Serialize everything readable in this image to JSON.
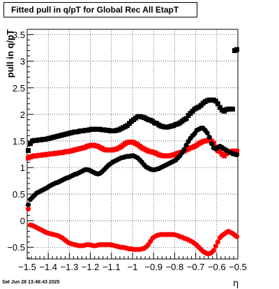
{
  "chart_data": {
    "type": "scatter",
    "title": "Fitted pull in q/pT for Global Rec All EtapT",
    "xlabel": "η",
    "ylabel": "pull in q/pT",
    "xlim": [
      -1.5,
      -0.5
    ],
    "ylim": [
      -0.72,
      3.6
    ],
    "grid": true,
    "x_ticks": [
      "−1.5",
      "−1.4",
      "−1.3",
      "−1.2",
      "−1.1",
      "−1",
      "−0.9",
      "−0.8",
      "−0.7",
      "−0.6",
      "−0.5"
    ],
    "x_tick_values": [
      -1.5,
      -1.4,
      -1.3,
      -1.2,
      -1.1,
      -1.0,
      -0.9,
      -0.8,
      -0.7,
      -0.6,
      -0.5
    ],
    "y_ticks": [
      "−0.5",
      "0",
      "0.5",
      "1",
      "1.5",
      "2",
      "2.5",
      "3",
      "3.5"
    ],
    "y_tick_values": [
      -0.5,
      0,
      0.5,
      1,
      1.5,
      2,
      2.5,
      3,
      3.5
    ],
    "series": [
      {
        "marker": "square",
        "color": "#000000",
        "x": [
          -1.495,
          -1.485,
          -1.475,
          -1.465,
          -1.455,
          -1.445,
          -1.435,
          -1.425,
          -1.415,
          -1.405,
          -1.395,
          -1.385,
          -1.375,
          -1.365,
          -1.355,
          -1.345,
          -1.335,
          -1.325,
          -1.315,
          -1.305,
          -1.295,
          -1.285,
          -1.275,
          -1.265,
          -1.255,
          -1.245,
          -1.235,
          -1.225,
          -1.215,
          -1.205,
          -1.195,
          -1.185,
          -1.175,
          -1.165,
          -1.155,
          -1.145,
          -1.135,
          -1.125,
          -1.115,
          -1.105,
          -1.095,
          -1.085,
          -1.075,
          -1.065,
          -1.055,
          -1.045,
          -1.035,
          -1.025,
          -1.015,
          -1.005,
          -0.995,
          -0.985,
          -0.975,
          -0.965,
          -0.955,
          -0.945,
          -0.935,
          -0.925,
          -0.915,
          -0.905,
          -0.895,
          -0.885,
          -0.875,
          -0.865,
          -0.855,
          -0.845,
          -0.835,
          -0.825,
          -0.815,
          -0.805,
          -0.795,
          -0.785,
          -0.775,
          -0.765,
          -0.755,
          -0.745,
          -0.735,
          -0.725,
          -0.715,
          -0.705,
          -0.695,
          -0.685,
          -0.675,
          -0.665,
          -0.655,
          -0.645,
          -0.635,
          -0.625,
          -0.615,
          -0.605,
          -0.595,
          -0.585,
          -0.575,
          -0.565,
          -0.555,
          -0.545,
          -0.535,
          -0.525,
          -0.515,
          -0.505
        ],
        "y": [
          1.32,
          1.45,
          1.5,
          1.51,
          1.51,
          1.52,
          1.52,
          1.53,
          1.53,
          1.54,
          1.55,
          1.56,
          1.57,
          1.58,
          1.59,
          1.6,
          1.61,
          1.62,
          1.63,
          1.64,
          1.65,
          1.66,
          1.67,
          1.67,
          1.68,
          1.69,
          1.69,
          1.7,
          1.7,
          1.71,
          1.72,
          1.72,
          1.72,
          1.72,
          1.72,
          1.71,
          1.71,
          1.7,
          1.7,
          1.69,
          1.69,
          1.69,
          1.7,
          1.71,
          1.73,
          1.75,
          1.77,
          1.79,
          1.83,
          1.87,
          1.9,
          1.93,
          1.96,
          1.96,
          1.95,
          1.94,
          1.92,
          1.9,
          1.89,
          1.87,
          1.84,
          1.83,
          1.8,
          1.78,
          1.77,
          1.76,
          1.76,
          1.77,
          1.78,
          1.79,
          1.81,
          1.82,
          1.84,
          1.87,
          1.9,
          1.92,
          1.98,
          2.02,
          2.06,
          2.1,
          2.12,
          2.14,
          2.17,
          2.21,
          2.24,
          2.26,
          2.27,
          2.27,
          2.27,
          2.25,
          2.2,
          2.13,
          2.08,
          2.06,
          2.09,
          2.1,
          2.1,
          2.1,
          3.2,
          3.22
        ]
      },
      {
        "marker": "square",
        "color": "#ff0000",
        "x": [
          -1.495,
          -1.485,
          -1.475,
          -1.465,
          -1.455,
          -1.445,
          -1.435,
          -1.425,
          -1.415,
          -1.405,
          -1.395,
          -1.385,
          -1.375,
          -1.365,
          -1.355,
          -1.345,
          -1.335,
          -1.325,
          -1.315,
          -1.305,
          -1.295,
          -1.285,
          -1.275,
          -1.265,
          -1.255,
          -1.245,
          -1.235,
          -1.225,
          -1.215,
          -1.205,
          -1.195,
          -1.185,
          -1.175,
          -1.165,
          -1.155,
          -1.145,
          -1.135,
          -1.125,
          -1.115,
          -1.105,
          -1.095,
          -1.085,
          -1.075,
          -1.065,
          -1.055,
          -1.045,
          -1.035,
          -1.025,
          -1.015,
          -1.005,
          -0.995,
          -0.985,
          -0.975,
          -0.965,
          -0.955,
          -0.945,
          -0.935,
          -0.925,
          -0.915,
          -0.905,
          -0.895,
          -0.885,
          -0.875,
          -0.865,
          -0.855,
          -0.845,
          -0.835,
          -0.825,
          -0.815,
          -0.805,
          -0.795,
          -0.785,
          -0.775,
          -0.765,
          -0.755,
          -0.745,
          -0.735,
          -0.725,
          -0.715,
          -0.705,
          -0.695,
          -0.685,
          -0.675,
          -0.665,
          -0.655,
          -0.645,
          -0.635,
          -0.625,
          -0.615,
          -0.605,
          -0.595,
          -0.585,
          -0.575,
          -0.565,
          -0.555,
          -0.545,
          -0.535,
          -0.525,
          -0.515,
          -0.505
        ],
        "y": [
          1.18,
          1.2,
          1.21,
          1.22,
          1.22,
          1.23,
          1.23,
          1.24,
          1.24,
          1.25,
          1.25,
          1.26,
          1.26,
          1.27,
          1.27,
          1.28,
          1.28,
          1.29,
          1.3,
          1.3,
          1.31,
          1.32,
          1.33,
          1.34,
          1.35,
          1.36,
          1.37,
          1.38,
          1.4,
          1.41,
          1.42,
          1.42,
          1.41,
          1.4,
          1.38,
          1.36,
          1.34,
          1.33,
          1.33,
          1.33,
          1.33,
          1.34,
          1.35,
          1.37,
          1.39,
          1.42,
          1.45,
          1.47,
          1.48,
          1.48,
          1.47,
          1.45,
          1.43,
          1.4,
          1.37,
          1.35,
          1.33,
          1.31,
          1.3,
          1.29,
          1.28,
          1.26,
          1.24,
          1.23,
          1.22,
          1.22,
          1.22,
          1.22,
          1.23,
          1.24,
          1.25,
          1.27,
          1.28,
          1.29,
          1.31,
          1.33,
          1.35,
          1.37,
          1.38,
          1.4,
          1.42,
          1.45,
          1.47,
          1.49,
          1.5,
          1.51,
          1.51,
          1.5,
          1.46,
          1.38,
          1.32,
          1.3,
          1.25,
          1.22,
          1.26,
          1.3,
          1.3,
          1.31,
          1.31,
          1.31
        ]
      },
      {
        "marker": "circle",
        "color": "#000000",
        "x": [
          -1.495,
          -1.485,
          -1.475,
          -1.465,
          -1.455,
          -1.445,
          -1.435,
          -1.425,
          -1.415,
          -1.405,
          -1.395,
          -1.385,
          -1.375,
          -1.365,
          -1.355,
          -1.345,
          -1.335,
          -1.325,
          -1.315,
          -1.305,
          -1.295,
          -1.285,
          -1.275,
          -1.265,
          -1.255,
          -1.245,
          -1.235,
          -1.225,
          -1.215,
          -1.205,
          -1.195,
          -1.185,
          -1.175,
          -1.165,
          -1.155,
          -1.145,
          -1.135,
          -1.125,
          -1.115,
          -1.105,
          -1.095,
          -1.085,
          -1.075,
          -1.065,
          -1.055,
          -1.045,
          -1.035,
          -1.025,
          -1.015,
          -1.005,
          -0.995,
          -0.985,
          -0.975,
          -0.965,
          -0.955,
          -0.945,
          -0.935,
          -0.925,
          -0.915,
          -0.905,
          -0.895,
          -0.885,
          -0.875,
          -0.865,
          -0.855,
          -0.845,
          -0.835,
          -0.825,
          -0.815,
          -0.805,
          -0.795,
          -0.785,
          -0.775,
          -0.765,
          -0.755,
          -0.745,
          -0.735,
          -0.725,
          -0.715,
          -0.705,
          -0.695,
          -0.685,
          -0.675,
          -0.665,
          -0.655,
          -0.645,
          -0.635,
          -0.625,
          -0.615,
          -0.605,
          -0.595,
          -0.585,
          -0.575,
          -0.565,
          -0.555,
          -0.545,
          -0.535,
          -0.525,
          -0.515,
          -0.505
        ],
        "y": [
          0.3,
          0.4,
          0.44,
          0.48,
          0.52,
          0.54,
          0.56,
          0.58,
          0.6,
          0.62,
          0.65,
          0.67,
          0.69,
          0.71,
          0.72,
          0.74,
          0.76,
          0.78,
          0.8,
          0.81,
          0.83,
          0.85,
          0.87,
          0.88,
          0.9,
          0.92,
          0.94,
          0.96,
          0.96,
          0.95,
          0.93,
          0.91,
          0.89,
          0.88,
          0.89,
          0.92,
          0.96,
          1.0,
          1.04,
          1.07,
          1.1,
          1.12,
          1.14,
          1.16,
          1.18,
          1.19,
          1.2,
          1.21,
          1.21,
          1.22,
          1.22,
          1.2,
          1.18,
          1.14,
          1.1,
          1.05,
          1.01,
          0.99,
          0.97,
          0.96,
          0.96,
          0.97,
          0.98,
          1.0,
          1.02,
          1.04,
          1.06,
          1.08,
          1.1,
          1.12,
          1.14,
          1.18,
          1.22,
          1.28,
          1.34,
          1.42,
          1.49,
          1.55,
          1.6,
          1.64,
          1.7,
          1.72,
          1.74,
          1.74,
          1.7,
          1.65,
          1.57,
          1.45,
          1.37,
          1.35,
          1.38,
          1.4,
          1.38,
          1.35,
          1.33,
          1.3,
          1.28,
          1.26,
          1.25,
          1.24
        ]
      },
      {
        "marker": "circle",
        "color": "#ff0000",
        "x": [
          -1.495,
          -1.485,
          -1.475,
          -1.465,
          -1.455,
          -1.445,
          -1.435,
          -1.425,
          -1.415,
          -1.405,
          -1.395,
          -1.385,
          -1.375,
          -1.365,
          -1.355,
          -1.345,
          -1.335,
          -1.325,
          -1.315,
          -1.305,
          -1.295,
          -1.285,
          -1.275,
          -1.265,
          -1.255,
          -1.245,
          -1.235,
          -1.225,
          -1.215,
          -1.205,
          -1.195,
          -1.185,
          -1.175,
          -1.165,
          -1.155,
          -1.145,
          -1.135,
          -1.125,
          -1.115,
          -1.105,
          -1.095,
          -1.085,
          -1.075,
          -1.065,
          -1.055,
          -1.045,
          -1.035,
          -1.025,
          -1.015,
          -1.005,
          -0.995,
          -0.985,
          -0.975,
          -0.965,
          -0.955,
          -0.945,
          -0.935,
          -0.925,
          -0.915,
          -0.905,
          -0.895,
          -0.885,
          -0.875,
          -0.865,
          -0.855,
          -0.845,
          -0.835,
          -0.825,
          -0.815,
          -0.805,
          -0.795,
          -0.785,
          -0.775,
          -0.765,
          -0.755,
          -0.745,
          -0.735,
          -0.725,
          -0.715,
          -0.705,
          -0.695,
          -0.685,
          -0.675,
          -0.665,
          -0.655,
          -0.645,
          -0.635,
          -0.625,
          -0.615,
          -0.605,
          -0.595,
          -0.585,
          -0.575,
          -0.565,
          -0.555,
          -0.545,
          -0.535,
          -0.525,
          -0.515,
          -0.505
        ],
        "y": [
          0.22,
          -0.08,
          -0.09,
          -0.11,
          -0.13,
          -0.15,
          -0.17,
          -0.19,
          -0.21,
          -0.23,
          -0.24,
          -0.25,
          -0.26,
          -0.27,
          -0.28,
          -0.3,
          -0.32,
          -0.35,
          -0.38,
          -0.41,
          -0.43,
          -0.44,
          -0.45,
          -0.46,
          -0.47,
          -0.47,
          -0.47,
          -0.46,
          -0.45,
          -0.45,
          -0.46,
          -0.47,
          -0.47,
          -0.46,
          -0.45,
          -0.45,
          -0.45,
          -0.45,
          -0.45,
          -0.45,
          -0.46,
          -0.47,
          -0.48,
          -0.49,
          -0.5,
          -0.5,
          -0.51,
          -0.52,
          -0.53,
          -0.53,
          -0.54,
          -0.54,
          -0.54,
          -0.54,
          -0.53,
          -0.52,
          -0.49,
          -0.45,
          -0.39,
          -0.33,
          -0.3,
          -0.28,
          -0.27,
          -0.26,
          -0.26,
          -0.26,
          -0.26,
          -0.26,
          -0.26,
          -0.26,
          -0.27,
          -0.28,
          -0.3,
          -0.31,
          -0.33,
          -0.34,
          -0.36,
          -0.38,
          -0.4,
          -0.43,
          -0.46,
          -0.5,
          -0.54,
          -0.58,
          -0.6,
          -0.62,
          -0.62,
          -0.6,
          -0.56,
          -0.48,
          -0.4,
          -0.32,
          -0.28,
          -0.25,
          -0.22,
          -0.2,
          -0.22,
          -0.24,
          -0.27,
          -0.3
        ]
      }
    ]
  },
  "footer": {
    "timestamp": "Sat Jun 28 13:46:43 2025"
  }
}
